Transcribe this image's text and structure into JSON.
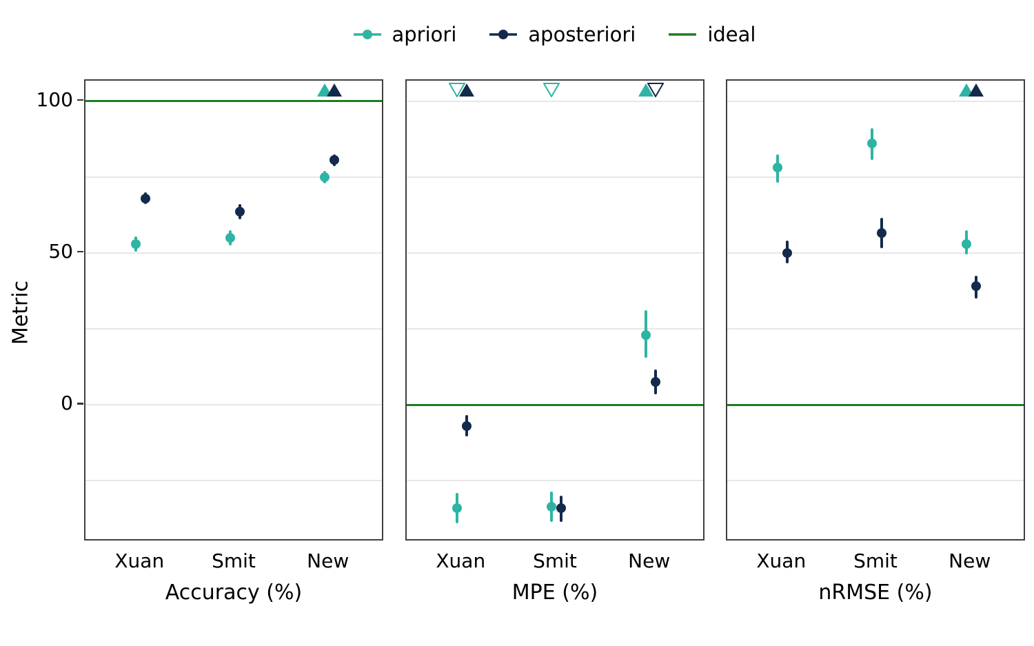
{
  "chart_data": {
    "type": "scatter",
    "title": "",
    "ylabel": "Metric",
    "categories": [
      "Xuan",
      "Smit",
      "New"
    ],
    "y_breaks": [
      0,
      50,
      100
    ],
    "y_break_labels": [
      "0",
      "50",
      "100"
    ],
    "y_minor_gridlines": [
      -25,
      0,
      25,
      50,
      75,
      100
    ],
    "ylim": [
      -45,
      107
    ],
    "grid": "horizontal-only",
    "legend": {
      "position": "top",
      "entries": [
        {
          "name": "apriori",
          "label": "apriori",
          "glyph": "point-line"
        },
        {
          "name": "aposteriori",
          "label": "aposteriori",
          "glyph": "point-line"
        },
        {
          "name": "ideal",
          "label": "ideal",
          "glyph": "line"
        }
      ]
    },
    "series_colors": {
      "apriori": "#2eb4a4",
      "aposteriori": "#132a4c",
      "ideal": "#1e7d1f"
    },
    "panels": [
      {
        "facet_label": "Accuracy (%)",
        "ideal_value": 100,
        "series": [
          {
            "name": "apriori",
            "points": [
              {
                "category": "Xuan",
                "value": 53,
                "ci": [
                  50.5,
                  55.5
                ]
              },
              {
                "category": "Smit",
                "value": 55,
                "ci": [
                  52.5,
                  57.5
                ]
              },
              {
                "category": "New",
                "value": 75,
                "ci": [
                  73,
                  77
                ]
              }
            ]
          },
          {
            "name": "aposteriori",
            "points": [
              {
                "category": "Xuan",
                "value": 68,
                "ci": [
                  66,
                  70
                ]
              },
              {
                "category": "Smit",
                "value": 63.5,
                "ci": [
                  61,
                  66
                ]
              },
              {
                "category": "New",
                "value": 80.5,
                "ci": [
                  78.5,
                  82.5
                ]
              }
            ]
          }
        ],
        "clipped_markers": [
          {
            "series": "apriori",
            "category": "New",
            "shape": "triangle-up-filled"
          },
          {
            "series": "aposteriori",
            "category": "New",
            "shape": "triangle-up-filled"
          }
        ]
      },
      {
        "facet_label": "MPE (%)",
        "ideal_value": 0,
        "series": [
          {
            "name": "apriori",
            "points": [
              {
                "category": "Xuan",
                "value": -34,
                "ci": [
                  -39,
                  -29
                ]
              },
              {
                "category": "Smit",
                "value": -33.5,
                "ci": [
                  -38.5,
                  -28.5
                ]
              },
              {
                "category": "New",
                "value": 23,
                "ci": [
                  15.5,
                  31
                ]
              }
            ]
          },
          {
            "name": "aposteriori",
            "points": [
              {
                "category": "Xuan",
                "value": -7,
                "ci": [
                  -10.5,
                  -3.5
                ]
              },
              {
                "category": "Smit",
                "value": -34,
                "ci": [
                  -38.5,
                  -30
                ]
              },
              {
                "category": "New",
                "value": 7.5,
                "ci": [
                  3.5,
                  11.5
                ]
              }
            ]
          }
        ],
        "clipped_markers": [
          {
            "series": "apriori",
            "category": "Xuan",
            "shape": "triangle-down-open"
          },
          {
            "series": "aposteriori",
            "category": "Xuan",
            "shape": "triangle-up-filled"
          },
          {
            "series": "apriori",
            "category": "Smit",
            "shape": "triangle-down-open"
          },
          {
            "series": "apriori",
            "category": "New",
            "shape": "triangle-up-filled"
          },
          {
            "series": "aposteriori",
            "category": "New",
            "shape": "triangle-down-open"
          }
        ]
      },
      {
        "facet_label": "nRMSE (%)",
        "ideal_value": 0,
        "series": [
          {
            "name": "apriori",
            "points": [
              {
                "category": "Xuan",
                "value": 78,
                "ci": [
                  73,
                  82.5
                ]
              },
              {
                "category": "Smit",
                "value": 86,
                "ci": [
                  80.5,
                  91
                ]
              },
              {
                "category": "New",
                "value": 53,
                "ci": [
                  49.5,
                  57.5
                ]
              }
            ]
          },
          {
            "name": "aposteriori",
            "points": [
              {
                "category": "Xuan",
                "value": 50,
                "ci": [
                  46.5,
                  54
                ]
              },
              {
                "category": "Smit",
                "value": 56.5,
                "ci": [
                  51.5,
                  61.5
                ]
              },
              {
                "category": "New",
                "value": 39,
                "ci": [
                  35,
                  42.5
                ]
              }
            ]
          }
        ],
        "clipped_markers": [
          {
            "series": "apriori",
            "category": "New",
            "shape": "triangle-up-filled"
          },
          {
            "series": "aposteriori",
            "category": "New",
            "shape": "triangle-up-filled"
          }
        ]
      }
    ]
  }
}
